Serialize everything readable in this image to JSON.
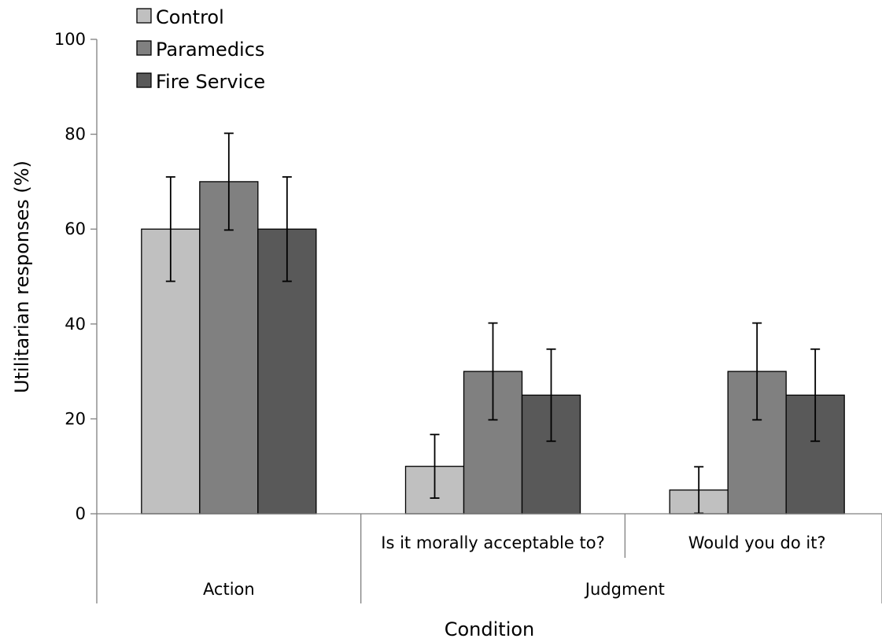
{
  "chart_data": {
    "type": "bar",
    "title": "",
    "xlabel": "Condition",
    "ylabel": "Utilitarian responses (%)",
    "ylim": [
      0,
      100
    ],
    "yticks": [
      "0",
      "20",
      "40",
      "60",
      "80",
      "100"
    ],
    "grid": false,
    "legend_position": "top-left",
    "categories": [
      "",
      "Is it morally acceptable to?",
      "Would you do it?"
    ],
    "category_groups": [
      {
        "label": "Action",
        "categories": [
          0
        ]
      },
      {
        "label": "Judgment",
        "categories": [
          1,
          2
        ]
      }
    ],
    "series": [
      {
        "name": "Control",
        "color": "#c0c0c0",
        "values": [
          60,
          10,
          5
        ],
        "errors": [
          11,
          6.7,
          4.9
        ]
      },
      {
        "name": "Paramedics",
        "color": "#808080",
        "values": [
          70,
          30,
          30
        ],
        "errors": [
          10.2,
          10.2,
          10.2
        ]
      },
      {
        "name": "Fire Service",
        "color": "#595959",
        "values": [
          60,
          25,
          25
        ],
        "errors": [
          11,
          9.7,
          9.7
        ]
      }
    ]
  }
}
